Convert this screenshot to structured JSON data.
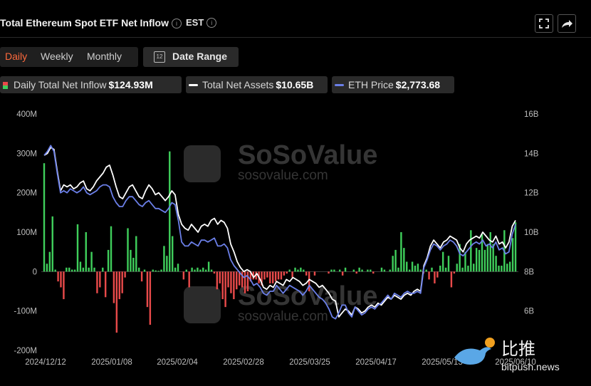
{
  "header": {
    "title": "Total Ethereum Spot ETF Net Inflow",
    "timezone": "EST"
  },
  "tabs": [
    {
      "label": "Daily",
      "active": true
    },
    {
      "label": "Weekly",
      "active": false
    },
    {
      "label": "Monthly",
      "active": false
    }
  ],
  "date_range": {
    "label": "Date Range",
    "calendar_glyph": "12"
  },
  "legend": [
    {
      "label": "Daily Total Net Inflow",
      "value": "$124.93M"
    },
    {
      "label": "Total Net Assets",
      "value": "$10.65B",
      "color": "#ffffff"
    },
    {
      "label": "ETH Price",
      "value": "$2,773.68",
      "color": "#6b7fe8"
    }
  ],
  "watermark": {
    "name": "SoSoValue",
    "url": "sosovalue.com"
  },
  "source_mark": {
    "cn": "比推",
    "url": "bitpush.news"
  },
  "colors": {
    "positive": "#3fce5b",
    "negative": "#e84a4a",
    "net_assets": "#ffffff",
    "eth_price": "#6b7fe8",
    "accent": "#ff6a3d",
    "background": "#000000"
  },
  "chart_data": {
    "type": "bar+line",
    "x_labels": [
      "2024/12/12",
      "2025/01/08",
      "2025/02/04",
      "2025/02/28",
      "2025/03/25",
      "2025/04/17",
      "2025/05/13",
      "2025/06/10"
    ],
    "y_left": {
      "ticks": [
        "400M",
        "300M",
        "200M",
        "100M",
        "0",
        "-100M",
        "-200M"
      ],
      "values": [
        400,
        300,
        200,
        100,
        0,
        -100,
        -200
      ],
      "unit": "M USD",
      "ylim": [
        -200,
        400
      ]
    },
    "y_right": {
      "ticks": [
        "16B",
        "14B",
        "12B",
        "10B",
        "8B",
        "6B"
      ],
      "values": [
        16,
        14,
        12,
        10,
        8,
        6
      ],
      "unit": "B USD",
      "ylim": [
        4,
        16
      ]
    },
    "grid": false,
    "series": [
      {
        "name": "Daily Total Net Inflow",
        "kind": "bar",
        "axis": "left",
        "values": [
          275,
          20,
          50,
          140,
          5,
          -25,
          -40,
          -70,
          10,
          10,
          5,
          5,
          120,
          25,
          10,
          100,
          10,
          50,
          10,
          -55,
          -40,
          10,
          -65,
          55,
          115,
          -80,
          -155,
          -70,
          -55,
          -15,
          110,
          55,
          35,
          90,
          10,
          -25,
          5,
          -90,
          -135,
          5,
          3,
          2,
          5,
          65,
          40,
          305,
          90,
          10,
          20,
          0,
          -20,
          5,
          -40,
          10,
          5,
          10,
          5,
          10,
          5,
          25,
          5,
          -5,
          -45,
          -30,
          -70,
          -90,
          -40,
          -55,
          -70,
          -45,
          -35,
          -40,
          -55,
          -50,
          -25,
          -20,
          -20,
          -30,
          -35,
          -20,
          -15,
          -30,
          -30,
          -25,
          -20,
          -20,
          -10,
          -5,
          5,
          -15,
          10,
          5,
          10,
          5,
          -10,
          -50,
          0,
          -10,
          0,
          0,
          0,
          0,
          -5,
          5,
          5,
          0,
          5,
          -10,
          10,
          0,
          0,
          5,
          -5,
          10,
          5,
          0,
          5,
          5,
          -5,
          0,
          0,
          10,
          5,
          0,
          5,
          40,
          55,
          10,
          100,
          60,
          25,
          5,
          25,
          15,
          20,
          5,
          -5,
          5,
          -20,
          10,
          -30,
          -15,
          15,
          50,
          10,
          40,
          -40,
          -5,
          20,
          70,
          10,
          50,
          15,
          105,
          20,
          60,
          55,
          95,
          55,
          70,
          100,
          70,
          40,
          15,
          15,
          105,
          20,
          25,
          85,
          125
        ]
      },
      {
        "name": "Total Net Assets",
        "kind": "line",
        "axis": "right",
        "color": "#ffffff",
        "values": [
          13.9,
          14.0,
          14.3,
          14.2,
          13.1,
          12.1,
          12.4,
          12.3,
          12.4,
          12.2,
          12.3,
          12.5,
          12.6,
          12.2,
          12.1,
          12.3,
          12.6,
          12.8,
          13.0,
          13.3,
          13.4,
          12.9,
          12.3,
          11.8,
          11.7,
          12.0,
          12.3,
          12.4,
          12.1,
          11.8,
          11.7,
          12.1,
          12.4,
          12.2,
          11.9,
          12.0,
          11.8,
          11.6,
          11.8,
          12.1,
          11.9,
          10.9,
          10.4,
          10.2,
          10.1,
          10.4,
          10.2,
          10.0,
          10.3,
          10.4,
          10.3,
          10.6,
          10.7,
          10.4,
          10.6,
          10.5,
          10.2,
          9.4,
          9.0,
          8.5,
          8.2,
          8.0,
          8.1,
          8.0,
          7.7,
          7.9,
          7.6,
          7.2,
          7.1,
          7.3,
          7.2,
          7.5,
          7.4,
          7.3,
          7.6,
          7.5,
          7.7,
          7.6,
          7.5,
          7.3,
          7.4,
          7.6,
          7.5,
          7.4,
          7.2,
          7.3,
          7.1,
          6.9,
          6.6,
          6.5,
          5.7,
          5.9,
          6.1,
          6.0,
          5.8,
          6.2,
          6.1,
          5.9,
          6.0,
          6.2,
          6.3,
          6.2,
          6.4,
          6.3,
          6.5,
          6.7,
          6.6,
          6.8,
          6.7,
          6.6,
          6.8,
          6.9,
          6.8,
          7.0,
          7.1,
          7.0,
          8.3,
          8.7,
          9.3,
          9.6,
          9.4,
          9.2,
          9.5,
          9.6,
          9.8,
          9.7,
          9.6,
          9.2,
          9.0,
          9.4,
          9.6,
          9.7,
          9.8,
          9.7,
          10.0,
          9.8,
          9.6,
          9.5,
          9.8,
          9.4,
          9.5,
          9.2,
          9.5,
          10.3,
          10.6
        ]
      },
      {
        "name": "ETH Price",
        "kind": "line",
        "axis": "right",
        "color": "#6b7fe8",
        "values": [
          13.9,
          14.1,
          14.4,
          14.1,
          13.0,
          12.0,
          12.1,
          12.0,
          12.2,
          12.1,
          12.0,
          12.1,
          12.3,
          12.0,
          11.9,
          12.0,
          12.1,
          12.3,
          12.4,
          12.4,
          12.3,
          11.8,
          11.5,
          11.3,
          11.3,
          11.6,
          11.8,
          11.8,
          11.6,
          11.4,
          11.3,
          11.5,
          11.6,
          11.4,
          11.2,
          11.2,
          11.1,
          11.0,
          11.2,
          11.5,
          11.4,
          10.6,
          9.5,
          9.3,
          9.3,
          9.5,
          9.4,
          9.3,
          9.6,
          9.6,
          9.5,
          9.6,
          9.7,
          9.3,
          9.3,
          9.4,
          9.2,
          8.6,
          8.3,
          8.1,
          7.9,
          7.7,
          7.8,
          7.6,
          7.3,
          7.4,
          7.2,
          6.9,
          6.8,
          7.0,
          7.0,
          7.3,
          7.1,
          6.9,
          7.1,
          7.3,
          7.2,
          7.1,
          7.0,
          6.8,
          7.0,
          7.3,
          7.1,
          6.9,
          6.7,
          6.6,
          6.4,
          6.1,
          5.7,
          5.6,
          5.9,
          6.3,
          6.3,
          5.9,
          5.7,
          6.2,
          6.0,
          5.8,
          5.9,
          6.1,
          6.2,
          6.1,
          6.3,
          6.4,
          6.6,
          6.8,
          6.6,
          6.9,
          6.8,
          6.7,
          6.9,
          7.0,
          6.9,
          6.9,
          7.0,
          6.9,
          8.2,
          8.6,
          9.1,
          9.4,
          9.3,
          9.1,
          9.3,
          9.4,
          9.6,
          9.5,
          9.3,
          8.9,
          8.8,
          9.0,
          9.2,
          9.4,
          9.5,
          9.4,
          9.6,
          9.3,
          9.4,
          9.2,
          9.5,
          9.1,
          9.2,
          8.9,
          9.0,
          9.9,
          10.4
        ]
      }
    ]
  }
}
